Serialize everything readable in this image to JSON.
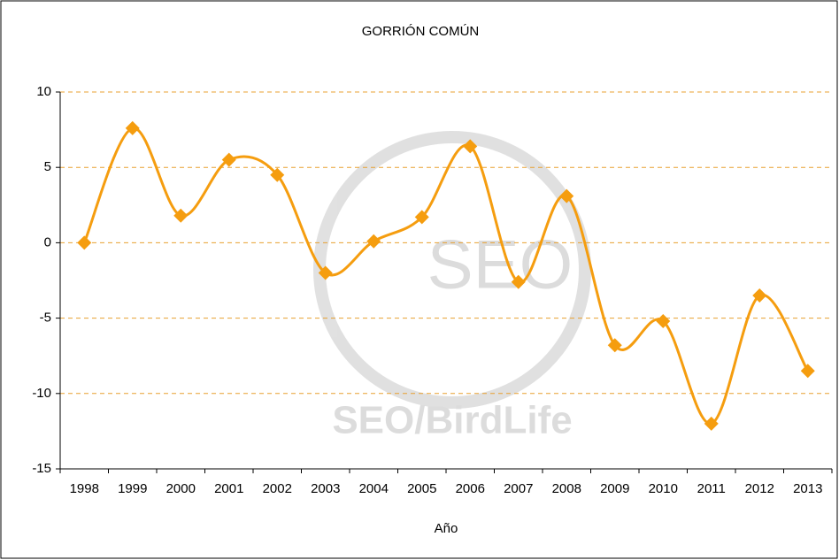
{
  "chart_data": {
    "type": "line",
    "title": "GORRIÓN COMÚN",
    "x_label": "Año",
    "watermark": "SEO/BirdLife",
    "watermark_logo": "SEO",
    "categories": [
      "1998",
      "1999",
      "2000",
      "2001",
      "2002",
      "2003",
      "2004",
      "2005",
      "2006",
      "2007",
      "2008",
      "2009",
      "2010",
      "2011",
      "2012",
      "2013"
    ],
    "series": [
      {
        "name": "GORRIÓN COMÚN",
        "color": "#f59d0f",
        "values": [
          0,
          7.6,
          1.8,
          5.5,
          4.5,
          -2.0,
          0.1,
          1.7,
          6.4,
          -2.6,
          3.1,
          -6.8,
          -5.2,
          -12.0,
          -3.5,
          -8.5
        ]
      }
    ],
    "ylim": [
      -15,
      10
    ],
    "yticks": [
      -15,
      -10,
      -5,
      0,
      5,
      10
    ],
    "grid": true,
    "smooth": true,
    "marker": "diamond"
  }
}
